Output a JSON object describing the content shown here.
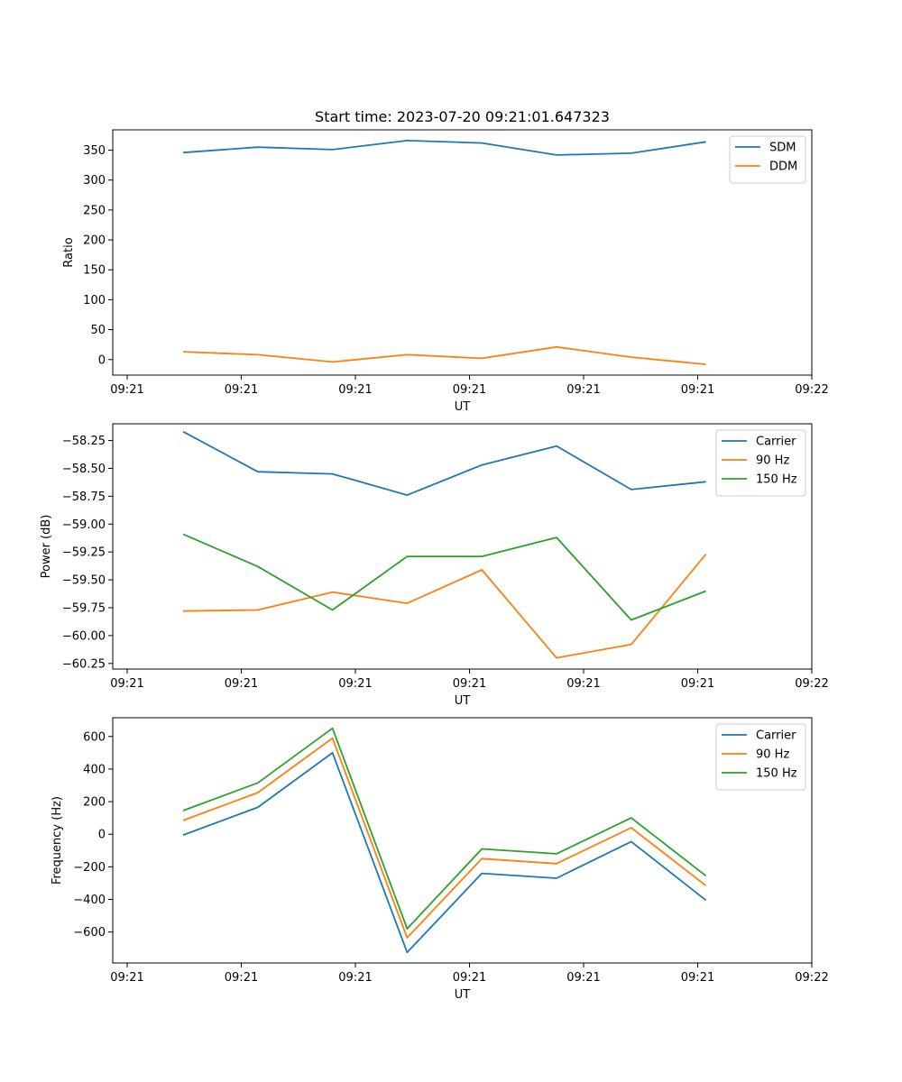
{
  "chart_data": [
    {
      "type": "line",
      "title": "Start time: 2023-07-20 09:21:01.647323",
      "xlabel": "UT",
      "ylabel": "Ratio",
      "x": [
        1,
        2,
        3,
        4,
        5,
        6,
        7,
        8
      ],
      "x_ticks": [
        "09:21",
        "09:21",
        "09:21",
        "09:21",
        "09:21",
        "09:21",
        "09:22"
      ],
      "xlim": [
        0.24,
        9.4
      ],
      "ylim": [
        -26,
        384
      ],
      "y_ticks": [
        0,
        50,
        100,
        150,
        200,
        250,
        300,
        350
      ],
      "series": [
        {
          "name": "SDM",
          "color": "#1f77b4",
          "values": [
            346,
            355,
            351,
            366,
            362,
            342,
            345,
            364
          ]
        },
        {
          "name": "DDM",
          "color": "#ff7f0e",
          "values": [
            13,
            8,
            -4,
            8,
            2,
            21,
            4,
            -8
          ]
        }
      ],
      "legend": "top-right"
    },
    {
      "type": "line",
      "title": "",
      "xlabel": "UT",
      "ylabel": "Power (dB)",
      "x": [
        1,
        2,
        3,
        4,
        5,
        6,
        7,
        8
      ],
      "x_ticks": [
        "09:21",
        "09:21",
        "09:21",
        "09:21",
        "09:21",
        "09:21",
        "09:22"
      ],
      "xlim": [
        0.24,
        9.4
      ],
      "ylim": [
        -60.3,
        -58.1
      ],
      "y_ticks": [
        "-60.25",
        "-60.00",
        "-59.75",
        "-59.50",
        "-59.25",
        "-59.00",
        "-58.75",
        "-58.50",
        "-58.25"
      ],
      "y_tick_values": [
        -60.25,
        -60.0,
        -59.75,
        -59.5,
        -59.25,
        -59.0,
        -58.75,
        -58.5,
        -58.25
      ],
      "series": [
        {
          "name": "Carrier",
          "color": "#1f77b4",
          "values": [
            -58.17,
            -58.53,
            -58.55,
            -58.74,
            -58.47,
            -58.3,
            -58.69,
            -58.62
          ]
        },
        {
          "name": "90 Hz",
          "color": "#ff7f0e",
          "values": [
            -59.78,
            -59.77,
            -59.61,
            -59.71,
            -59.41,
            -60.2,
            -60.08,
            -59.27
          ]
        },
        {
          "name": "150 Hz",
          "color": "#2ca02c",
          "values": [
            -59.09,
            -59.38,
            -59.77,
            -59.29,
            -59.29,
            -59.12,
            -59.86,
            -59.6
          ]
        }
      ],
      "legend": "top-right"
    },
    {
      "type": "line",
      "title": "",
      "xlabel": "UT",
      "ylabel": "Frequency (Hz)",
      "x": [
        1,
        2,
        3,
        4,
        5,
        6,
        7,
        8
      ],
      "x_ticks": [
        "09:21",
        "09:21",
        "09:21",
        "09:21",
        "09:21",
        "09:21",
        "09:22"
      ],
      "xlim": [
        0.24,
        9.4
      ],
      "ylim": [
        -790,
        715
      ],
      "y_ticks": [
        "−600",
        "−400",
        "−200",
        "0",
        "200",
        "400",
        "600"
      ],
      "y_tick_values": [
        -600,
        -400,
        -200,
        0,
        200,
        400,
        600
      ],
      "series": [
        {
          "name": "Carrier",
          "color": "#1f77b4",
          "values": [
            -5,
            165,
            500,
            -725,
            -240,
            -270,
            -45,
            -405
          ]
        },
        {
          "name": "90 Hz",
          "color": "#ff7f0e",
          "values": [
            85,
            255,
            590,
            -635,
            -150,
            -180,
            40,
            -315
          ]
        },
        {
          "name": "150 Hz",
          "color": "#2ca02c",
          "values": [
            145,
            315,
            650,
            -580,
            -90,
            -120,
            100,
            -255
          ]
        }
      ],
      "legend": "top-right"
    }
  ]
}
